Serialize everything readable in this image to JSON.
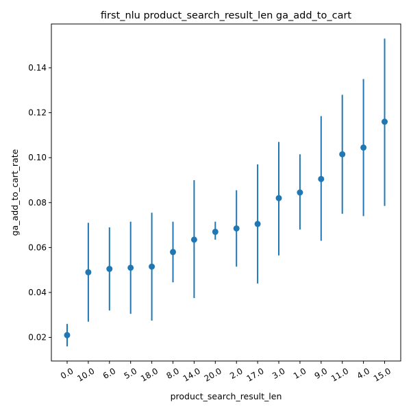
{
  "chart_data": {
    "type": "scatter",
    "title": "first_nlu product_search_result_len ga_add_to_cart",
    "xlabel": "product_search_result_len",
    "ylabel": "ga_add_to_cart_rate",
    "categories": [
      "0.0",
      "10.0",
      "6.0",
      "5.0",
      "18.0",
      "8.0",
      "14.0",
      "20.0",
      "2.0",
      "17.0",
      "3.0",
      "1.0",
      "9.0",
      "11.0",
      "4.0",
      "15.0"
    ],
    "values": [
      0.021,
      0.049,
      0.0505,
      0.051,
      0.0515,
      0.058,
      0.0635,
      0.067,
      0.0685,
      0.0705,
      0.082,
      0.0845,
      0.0905,
      0.1015,
      0.1045,
      0.116
    ],
    "error_low": [
      0.016,
      0.027,
      0.032,
      0.0305,
      0.0275,
      0.0445,
      0.0375,
      0.0635,
      0.0515,
      0.044,
      0.0565,
      0.068,
      0.063,
      0.075,
      0.074,
      0.0785
    ],
    "error_high": [
      0.026,
      0.071,
      0.069,
      0.0715,
      0.0755,
      0.0715,
      0.09,
      0.0715,
      0.0855,
      0.097,
      0.107,
      0.1015,
      0.1185,
      0.128,
      0.135,
      0.153
    ],
    "ylim": [
      0.0095,
      0.1595
    ],
    "yticks": [
      0.02,
      0.04,
      0.06,
      0.08,
      0.1,
      0.12,
      0.14
    ],
    "ytick_labels": [
      "0.02",
      "0.04",
      "0.06",
      "0.08",
      "0.10",
      "0.12",
      "0.14"
    ],
    "grid": false,
    "legend": "none",
    "color": "#1f77b4"
  }
}
